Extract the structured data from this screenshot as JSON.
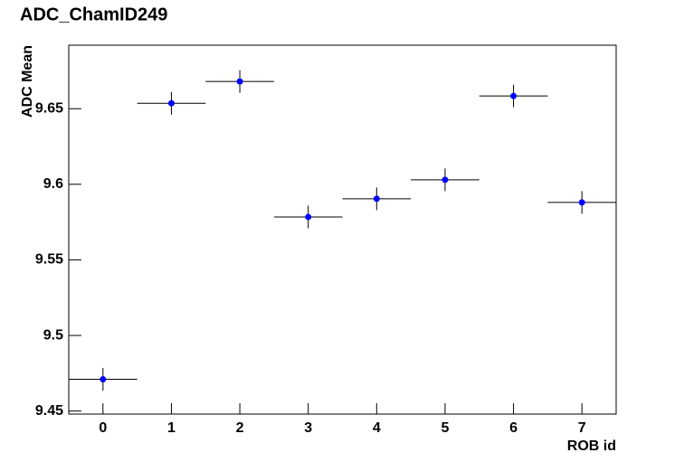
{
  "chart_data": {
    "type": "scatter",
    "title": "ADC_ChamID249",
    "x_label": "ROB id",
    "y_label": "ADC Mean",
    "x": [
      0,
      1,
      2,
      3,
      4,
      5,
      6,
      7
    ],
    "xerr": [
      0.5,
      0.5,
      0.5,
      0.5,
      0.5,
      0.5,
      0.5,
      0.5
    ],
    "values": [
      9.471,
      9.6536,
      9.668,
      9.5784,
      9.5904,
      9.603,
      9.6584,
      9.588
    ],
    "yerr": [
      0.0075,
      0.0075,
      0.0075,
      0.0075,
      0.0075,
      0.0075,
      0.0075,
      0.0075
    ],
    "color": "#0000ff",
    "xlim": [
      -0.5,
      7.5
    ],
    "xticks": [
      0,
      1,
      2,
      3,
      4,
      5,
      6,
      7
    ],
    "ylim": [
      9.448,
      9.692
    ],
    "yticks": [
      9.45,
      9.5,
      9.55,
      9.6,
      9.65
    ]
  }
}
